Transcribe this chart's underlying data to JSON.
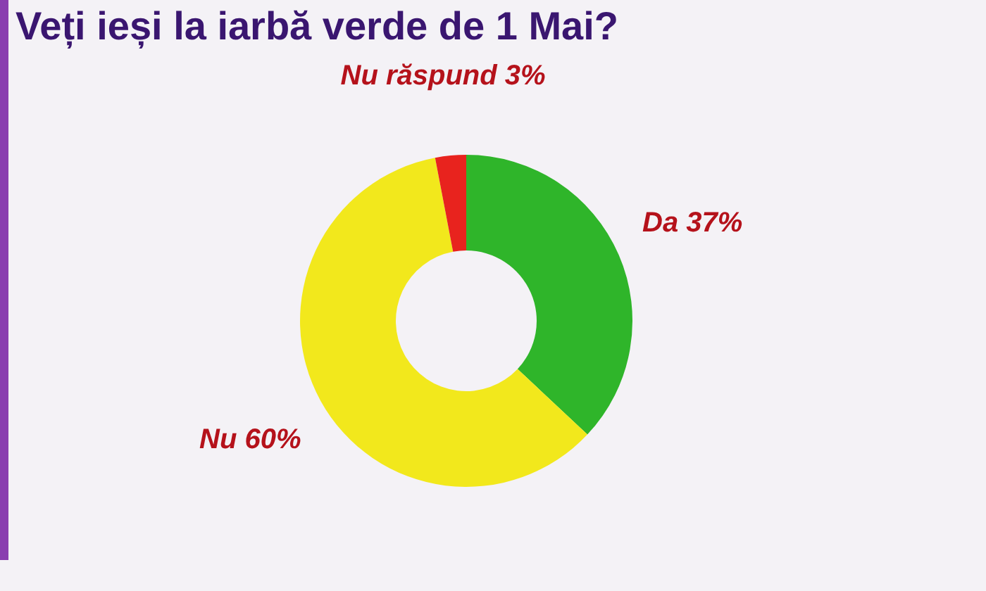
{
  "chart_data": {
    "type": "donut",
    "title": "Veți ieși la iarbă verde de 1 Mai?",
    "categories": [
      "Da",
      "Nu",
      "Nu răspund"
    ],
    "values": [
      37,
      60,
      3
    ],
    "colors": [
      "#2fb52a",
      "#f2e81c",
      "#e8231e"
    ],
    "value_labels": [
      "37%",
      "60%",
      "3%"
    ],
    "legend": false
  }
}
